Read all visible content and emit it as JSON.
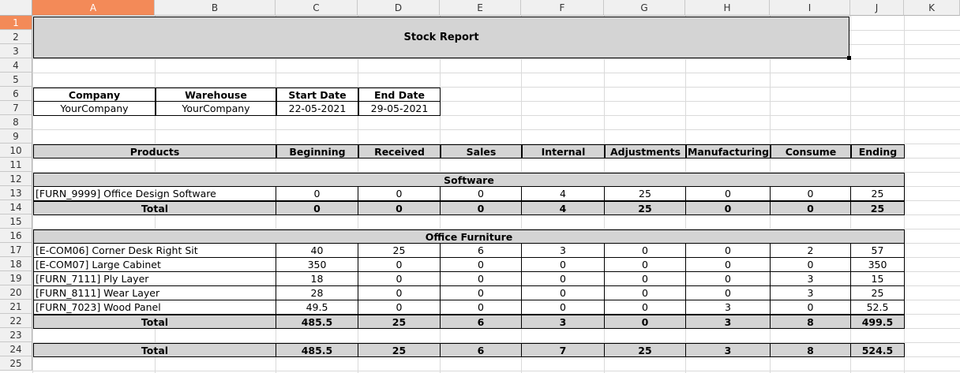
{
  "columns": [
    "A",
    "B",
    "C",
    "D",
    "E",
    "F",
    "G",
    "H",
    "I",
    "J",
    "K"
  ],
  "rows": [
    "1",
    "2",
    "3",
    "4",
    "5",
    "6",
    "7",
    "8",
    "9",
    "10",
    "11",
    "12",
    "13",
    "14",
    "15",
    "16",
    "17",
    "18",
    "19",
    "20",
    "21",
    "22",
    "23",
    "24",
    "25"
  ],
  "selected_column": "A",
  "selected_row": "1",
  "title": "Stock Report",
  "info": {
    "headers": [
      "Company",
      "Warehouse",
      "Start Date",
      "End Date"
    ],
    "values": [
      "YourCompany",
      "YourCompany",
      "22-05-2021",
      "29-05-2021"
    ]
  },
  "table_headers": [
    "Products",
    "Beginning",
    "Received",
    "Sales",
    "Internal",
    "Adjustments",
    "Manufacturing",
    "Consume",
    "Ending"
  ],
  "sections": [
    {
      "name": "Software",
      "rows": [
        {
          "product": "[FURN_9999] Office Design Software",
          "values": [
            "0",
            "0",
            "0",
            "4",
            "25",
            "0",
            "0",
            "25"
          ]
        }
      ],
      "total": {
        "label": "Total",
        "values": [
          "0",
          "0",
          "0",
          "4",
          "25",
          "0",
          "0",
          "25"
        ]
      }
    },
    {
      "name": "Office Furniture",
      "rows": [
        {
          "product": "[E-COM06] Corner Desk Right Sit",
          "values": [
            "40",
            "25",
            "6",
            "3",
            "0",
            "0",
            "2",
            "57"
          ]
        },
        {
          "product": "[E-COM07] Large Cabinet",
          "values": [
            "350",
            "0",
            "0",
            "0",
            "0",
            "0",
            "0",
            "350"
          ]
        },
        {
          "product": "[FURN_7111] Ply Layer",
          "values": [
            "18",
            "0",
            "0",
            "0",
            "0",
            "0",
            "3",
            "15"
          ]
        },
        {
          "product": "[FURN_8111] Wear Layer",
          "values": [
            "28",
            "0",
            "0",
            "0",
            "0",
            "0",
            "3",
            "25"
          ]
        },
        {
          "product": "[FURN_7023] Wood Panel",
          "values": [
            "49.5",
            "0",
            "0",
            "0",
            "0",
            "3",
            "0",
            "52.5"
          ]
        }
      ],
      "total": {
        "label": "Total",
        "values": [
          "485.5",
          "25",
          "6",
          "3",
          "0",
          "3",
          "8",
          "499.5"
        ]
      }
    }
  ],
  "grand_total": {
    "label": "Total",
    "values": [
      "485.5",
      "25",
      "6",
      "7",
      "25",
      "3",
      "8",
      "524.5"
    ]
  }
}
